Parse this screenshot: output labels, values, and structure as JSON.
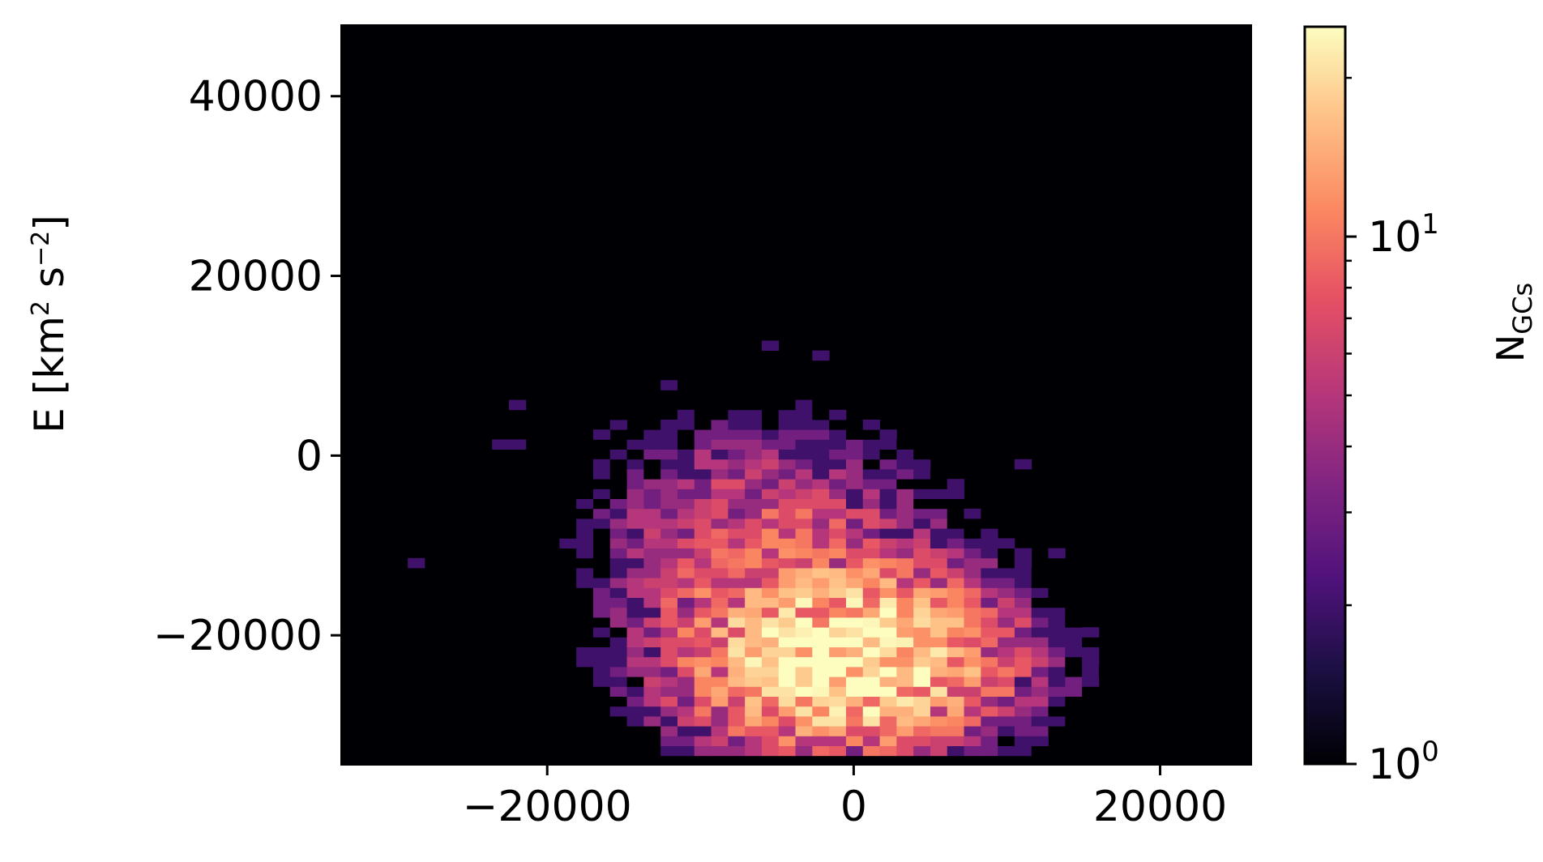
{
  "chart_data": {
    "type": "heatmap",
    "title": "",
    "xlabel": "",
    "ylabel": {
      "base": "E [km",
      "sup1": "2",
      "mid": " s",
      "sup2": "−2",
      "end": "]"
    },
    "xlim": [
      -33500,
      26000
    ],
    "ylim": [
      -34500,
      48000
    ],
    "xticks": [
      {
        "value": -20000,
        "label": "−20000"
      },
      {
        "value": 0,
        "label": "0"
      },
      {
        "value": 20000,
        "label": "20000"
      }
    ],
    "yticks": [
      {
        "value": 40000,
        "label": "40000"
      },
      {
        "value": 20000,
        "label": "20000"
      },
      {
        "value": 0,
        "label": "0"
      },
      {
        "value": -20000,
        "label": "−20000"
      }
    ],
    "bins": {
      "x_start": -33500,
      "x_width": 1100,
      "y_start": -34500,
      "y_width": 1100,
      "nx": 54,
      "ny": 75
    },
    "background_color": "#000004",
    "colormap": "magma",
    "colorbar": {
      "scale": "log",
      "min": 1,
      "max": 25,
      "label_base": "N",
      "label_sub": "GCs",
      "ticks": [
        {
          "value": 1,
          "base": "10",
          "exp": "0"
        },
        {
          "value": 10,
          "base": "10",
          "exp": "1"
        }
      ]
    },
    "histogram_note": "2D histogram of globular cluster counts; dense core near x≈0, y≈−22000 with counts up to ~25; bins with zero counts shown black."
  }
}
